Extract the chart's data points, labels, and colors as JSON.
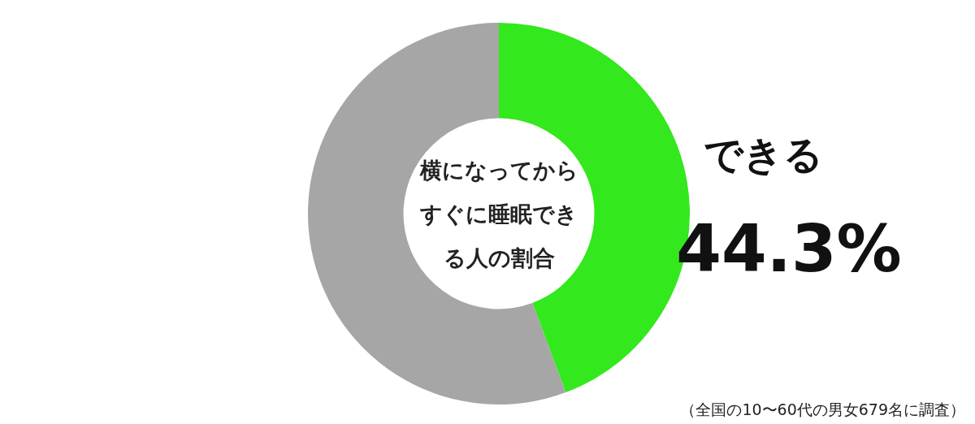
{
  "chart_data": {
    "type": "donut",
    "title": "横になってからすぐに睡眠できる人の割合",
    "categories": [
      "できる",
      null
    ],
    "values": [
      44.3,
      55.7
    ],
    "colors": [
      "#33e81c",
      "#a6a6a6"
    ],
    "value_labels": [
      "44.3%",
      null
    ],
    "legend": false,
    "annotations": [
      "（全国の10〜60代の男女679名に調査）"
    ]
  }
}
